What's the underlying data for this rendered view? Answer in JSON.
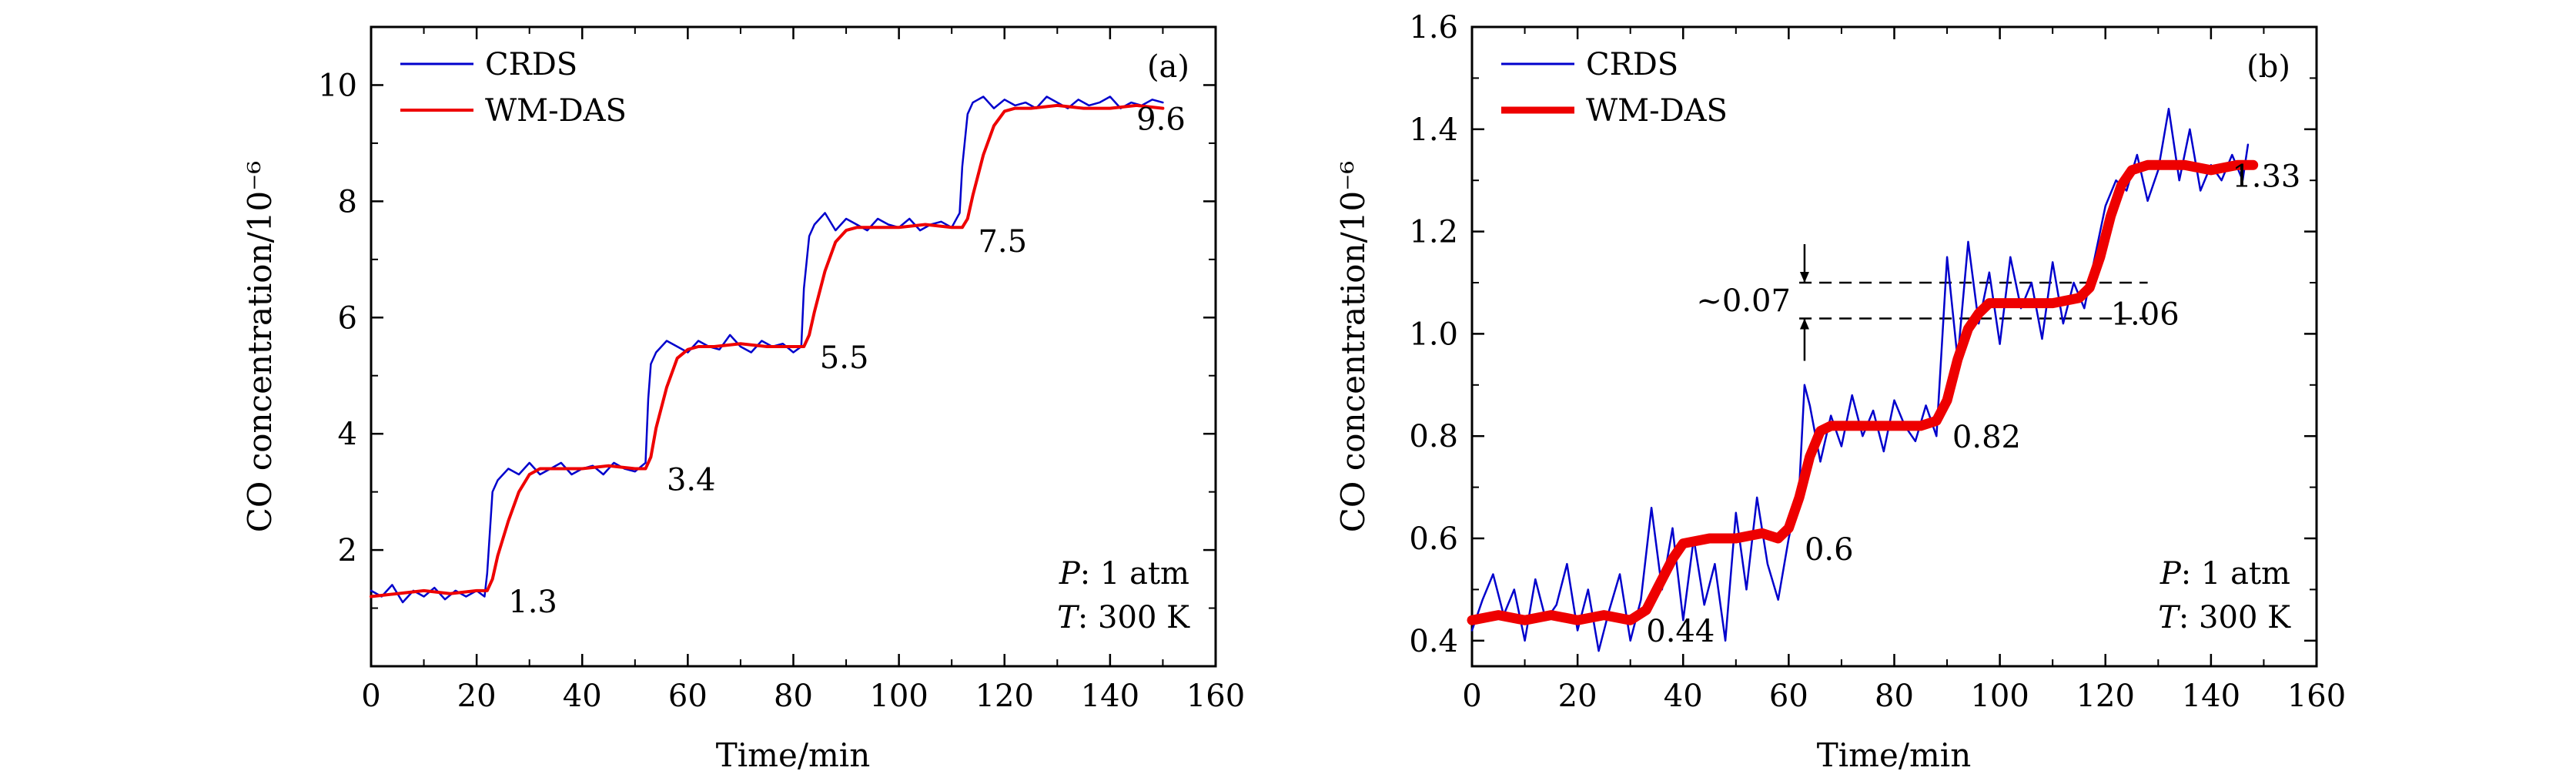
{
  "chart_data": [
    {
      "panel_label": "(a)",
      "type": "line",
      "xlabel": "Time/min",
      "ylabel": "CO concentration/10⁻⁶",
      "xlim": [
        0,
        160
      ],
      "ylim": [
        0,
        11
      ],
      "xticks": [
        0,
        20,
        40,
        60,
        80,
        100,
        120,
        140,
        160
      ],
      "yticks": [
        2,
        4,
        6,
        8,
        10
      ],
      "legend": {
        "placement": "top-left",
        "entries": [
          "CRDS",
          "WM-DAS"
        ]
      },
      "conditions": {
        "pressure": "P: 1 atm",
        "temperature": "T: 300 K"
      },
      "series": [
        {
          "name": "CRDS",
          "color": "#0000cc",
          "x": [
            0,
            2,
            4,
            6,
            8,
            10,
            12,
            14,
            16,
            18,
            20,
            21.5,
            22,
            23,
            24,
            26,
            28,
            30,
            32,
            34,
            36,
            38,
            40,
            42,
            44,
            46,
            48,
            50,
            52,
            52.5,
            53,
            54,
            56,
            58,
            60,
            62,
            64,
            66,
            68,
            70,
            72,
            74,
            76,
            78,
            80,
            81.5,
            82,
            83,
            84,
            86,
            88,
            90,
            92,
            94,
            96,
            98,
            100,
            102,
            104,
            106,
            108,
            110,
            111.5,
            112,
            113,
            114,
            116,
            118,
            120,
            122,
            124,
            126,
            128,
            130,
            132,
            134,
            136,
            138,
            140,
            142,
            144,
            146,
            148,
            150
          ],
          "y": [
            1.3,
            1.2,
            1.4,
            1.1,
            1.3,
            1.2,
            1.35,
            1.15,
            1.3,
            1.2,
            1.3,
            1.2,
            1.6,
            3.0,
            3.2,
            3.4,
            3.3,
            3.5,
            3.3,
            3.4,
            3.5,
            3.3,
            3.4,
            3.45,
            3.3,
            3.5,
            3.4,
            3.35,
            3.5,
            4.6,
            5.2,
            5.4,
            5.6,
            5.5,
            5.4,
            5.6,
            5.5,
            5.45,
            5.7,
            5.5,
            5.4,
            5.6,
            5.5,
            5.55,
            5.4,
            5.5,
            6.5,
            7.4,
            7.6,
            7.8,
            7.5,
            7.7,
            7.6,
            7.5,
            7.7,
            7.6,
            7.55,
            7.7,
            7.5,
            7.6,
            7.65,
            7.55,
            7.8,
            8.6,
            9.5,
            9.7,
            9.8,
            9.6,
            9.75,
            9.65,
            9.7,
            9.6,
            9.8,
            9.7,
            9.6,
            9.75,
            9.65,
            9.7,
            9.8,
            9.6,
            9.7,
            9.65,
            9.75,
            9.7
          ]
        },
        {
          "name": "WM-DAS",
          "color": "#ee0000",
          "x": [
            0,
            5,
            10,
            15,
            20,
            22,
            23,
            24,
            26,
            28,
            30,
            32,
            35,
            40,
            45,
            50,
            52,
            53,
            54,
            56,
            58,
            60,
            62,
            65,
            70,
            75,
            80,
            82,
            83,
            84,
            86,
            88,
            90,
            92,
            95,
            100,
            105,
            110,
            112,
            113,
            114,
            116,
            118,
            120,
            122,
            125,
            130,
            135,
            140,
            145,
            150
          ],
          "y": [
            1.2,
            1.25,
            1.3,
            1.25,
            1.3,
            1.3,
            1.5,
            1.9,
            2.5,
            3.0,
            3.3,
            3.4,
            3.4,
            3.4,
            3.45,
            3.4,
            3.4,
            3.6,
            4.1,
            4.8,
            5.3,
            5.45,
            5.5,
            5.5,
            5.55,
            5.5,
            5.5,
            5.5,
            5.7,
            6.1,
            6.8,
            7.3,
            7.5,
            7.55,
            7.55,
            7.55,
            7.6,
            7.55,
            7.55,
            7.7,
            8.1,
            8.8,
            9.3,
            9.55,
            9.6,
            9.6,
            9.65,
            9.6,
            9.6,
            9.65,
            9.6
          ]
        }
      ],
      "annotations": [
        {
          "text": "1.3",
          "x": 26,
          "y": 1.3
        },
        {
          "text": "3.4",
          "x": 56,
          "y": 3.4
        },
        {
          "text": "5.5",
          "x": 85,
          "y": 5.5
        },
        {
          "text": "7.5",
          "x": 115,
          "y": 7.5
        },
        {
          "text": "9.6",
          "x": 145,
          "y": 9.6
        }
      ]
    },
    {
      "panel_label": "(b)",
      "type": "line",
      "xlabel": "Time/min",
      "ylabel": "CO concentration/10⁻⁶",
      "xlim": [
        0,
        160
      ],
      "ylim": [
        0.35,
        1.6
      ],
      "xticks": [
        0,
        20,
        40,
        60,
        80,
        100,
        120,
        140,
        160
      ],
      "yticks": [
        0.4,
        0.6,
        0.8,
        1.0,
        1.2,
        1.4,
        1.6
      ],
      "ytick_labels": [
        "0.4",
        "0.6",
        "0.8",
        "1.0",
        "1.2",
        "1.4",
        "1.6"
      ],
      "legend": {
        "placement": "top-left",
        "entries": [
          "CRDS",
          "WM-DAS"
        ]
      },
      "conditions": {
        "pressure": "P: 1 atm",
        "temperature": "T: 300 K"
      },
      "difference_label": "~0.07",
      "difference_levels": [
        1.1,
        1.03
      ],
      "series": [
        {
          "name": "CRDS",
          "color": "#0000cc",
          "x": [
            0,
            2,
            4,
            6,
            8,
            10,
            12,
            14,
            16,
            18,
            20,
            22,
            24,
            26,
            28,
            30,
            32,
            34,
            36,
            38,
            40,
            42,
            44,
            46,
            48,
            50,
            52,
            54,
            56,
            58,
            60,
            62,
            63,
            64,
            66,
            68,
            70,
            72,
            74,
            76,
            78,
            80,
            82,
            84,
            86,
            88,
            90,
            92,
            94,
            96,
            98,
            100,
            102,
            104,
            106,
            108,
            110,
            112,
            114,
            116,
            118,
            120,
            122,
            124,
            126,
            128,
            130,
            132,
            134,
            136,
            138,
            140,
            142,
            144,
            146,
            147
          ],
          "y": [
            0.42,
            0.48,
            0.53,
            0.45,
            0.5,
            0.4,
            0.52,
            0.44,
            0.47,
            0.55,
            0.42,
            0.5,
            0.38,
            0.46,
            0.53,
            0.4,
            0.48,
            0.66,
            0.5,
            0.62,
            0.44,
            0.6,
            0.47,
            0.55,
            0.4,
            0.65,
            0.5,
            0.68,
            0.55,
            0.48,
            0.6,
            0.7,
            0.9,
            0.86,
            0.75,
            0.84,
            0.78,
            0.88,
            0.8,
            0.85,
            0.77,
            0.87,
            0.82,
            0.79,
            0.86,
            0.8,
            1.15,
            0.95,
            1.18,
            1.02,
            1.12,
            0.98,
            1.15,
            1.05,
            1.1,
            0.99,
            1.14,
            1.02,
            1.1,
            1.05,
            1.15,
            1.25,
            1.3,
            1.28,
            1.35,
            1.26,
            1.32,
            1.44,
            1.3,
            1.4,
            1.28,
            1.33,
            1.3,
            1.35,
            1.3,
            1.37
          ]
        },
        {
          "name": "WM-DAS",
          "color": "#ee0000",
          "x": [
            0,
            5,
            10,
            15,
            20,
            25,
            30,
            33,
            35,
            38,
            40,
            45,
            50,
            55,
            58,
            60,
            62,
            64,
            66,
            68,
            70,
            75,
            80,
            85,
            88,
            90,
            92,
            94,
            96,
            98,
            100,
            105,
            110,
            115,
            117,
            119,
            121,
            123,
            125,
            128,
            130,
            135,
            140,
            145,
            148
          ],
          "y": [
            0.44,
            0.45,
            0.44,
            0.45,
            0.44,
            0.45,
            0.44,
            0.46,
            0.5,
            0.56,
            0.59,
            0.6,
            0.6,
            0.61,
            0.6,
            0.62,
            0.68,
            0.76,
            0.81,
            0.82,
            0.82,
            0.82,
            0.82,
            0.82,
            0.83,
            0.87,
            0.95,
            1.01,
            1.04,
            1.06,
            1.06,
            1.06,
            1.06,
            1.07,
            1.09,
            1.15,
            1.23,
            1.29,
            1.32,
            1.33,
            1.33,
            1.33,
            1.32,
            1.33,
            1.33
          ]
        }
      ],
      "annotations": [
        {
          "text": "0.44",
          "x": 33,
          "y": 0.44
        },
        {
          "text": "0.6",
          "x": 63,
          "y": 0.6
        },
        {
          "text": "0.82",
          "x": 91,
          "y": 0.82
        },
        {
          "text": "1.06",
          "x": 121,
          "y": 1.06
        },
        {
          "text": "1.33",
          "x": 144,
          "y": 1.33
        }
      ]
    }
  ]
}
